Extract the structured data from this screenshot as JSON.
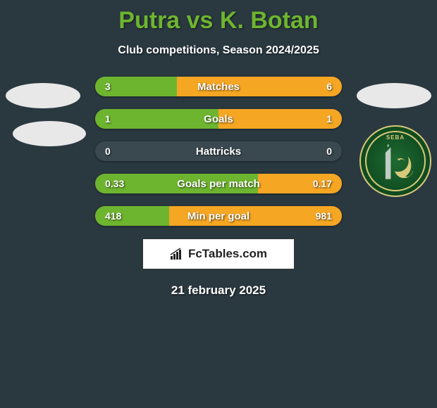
{
  "title": "Putra vs K. Botan",
  "subtitle": "Club competitions, Season 2024/2025",
  "date": "21 february 2025",
  "brand": "FcTables.com",
  "colors": {
    "background": "#2a3840",
    "accent_green": "#6eb52f",
    "accent_orange": "#f5a623",
    "bar_bg": "#3a4850",
    "text": "#ffffff"
  },
  "badge": {
    "name": "SEBA",
    "ring_color": "#d8c97a",
    "bg_gradient": [
      "#1e6a32",
      "#0f4a1f",
      "#073314"
    ]
  },
  "stats": [
    {
      "label": "Matches",
      "left_val": "3",
      "right_val": "6",
      "left_pct": 33,
      "right_pct": 67
    },
    {
      "label": "Goals",
      "left_val": "1",
      "right_val": "1",
      "left_pct": 50,
      "right_pct": 50
    },
    {
      "label": "Hattricks",
      "left_val": "0",
      "right_val": "0",
      "left_pct": 0,
      "right_pct": 0
    },
    {
      "label": "Goals per match",
      "left_val": "0.33",
      "right_val": "0.17",
      "left_pct": 66,
      "right_pct": 34
    },
    {
      "label": "Min per goal",
      "left_val": "418",
      "right_val": "981",
      "left_pct": 30,
      "right_pct": 70
    }
  ]
}
